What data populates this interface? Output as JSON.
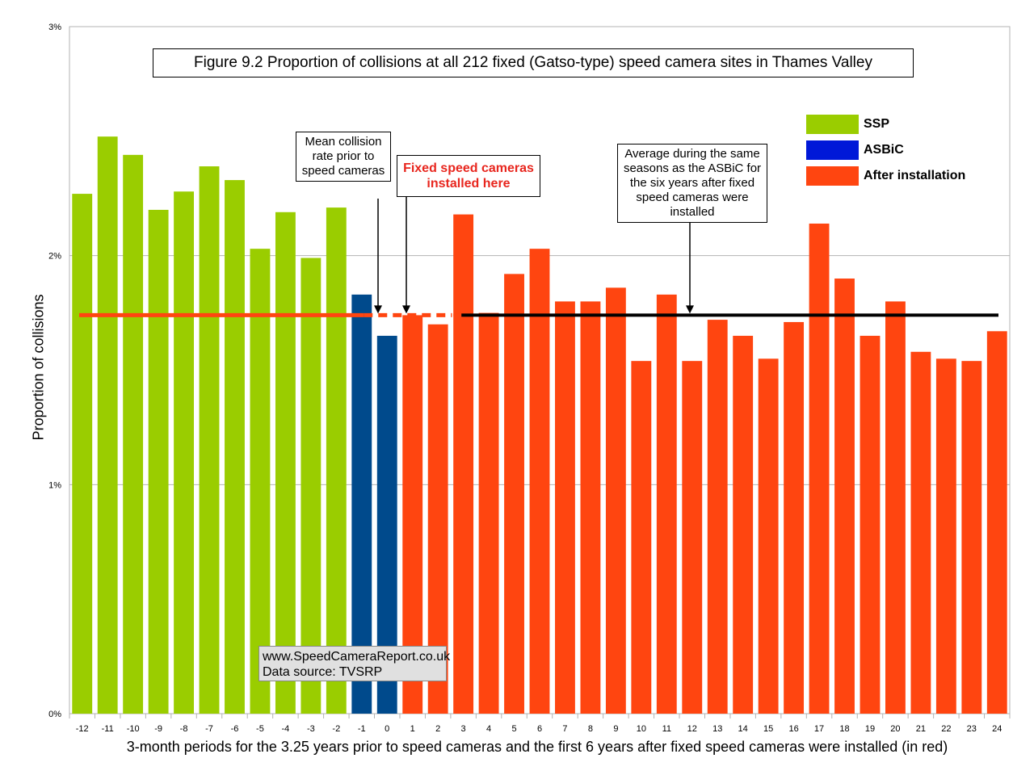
{
  "chart_data": {
    "type": "bar",
    "title": "Figure 9.2 Proportion of collisions at all 212 fixed (Gatso-type) speed camera sites in Thames Valley",
    "xlabel": "3-month periods for the 3.25 years prior to speed cameras and the first 6 years after fixed speed cameras were installed (in red)",
    "ylabel": "Proportion of collisions",
    "ylim": [
      0,
      3
    ],
    "yticks": [
      "0%",
      "1%",
      "2%",
      "3%"
    ],
    "grid": true,
    "categories": [
      "-12",
      "-11",
      "-10",
      "-9",
      "-8",
      "-7",
      "-6",
      "-5",
      "-4",
      "-3",
      "-2",
      "-1",
      "0",
      "1",
      "2",
      "3",
      "4",
      "5",
      "6",
      "7",
      "8",
      "9",
      "10",
      "11",
      "12",
      "13",
      "14",
      "15",
      "16",
      "17",
      "18",
      "19",
      "20",
      "21",
      "22",
      "23",
      "24"
    ],
    "values": [
      2.27,
      2.52,
      2.44,
      2.2,
      2.28,
      2.39,
      2.33,
      2.03,
      2.19,
      1.99,
      2.21,
      1.83,
      1.65,
      1.74,
      1.7,
      2.18,
      1.75,
      1.92,
      2.03,
      1.8,
      1.8,
      1.86,
      1.54,
      1.83,
      1.54,
      1.72,
      1.65,
      1.55,
      1.71,
      2.14,
      1.9,
      1.65,
      1.8,
      1.58,
      1.55,
      1.54,
      1.67
    ],
    "series_groups": [
      {
        "name": "SSP",
        "color": "#9acd00",
        "categories": [
          "-12",
          "-11",
          "-10",
          "-9",
          "-8",
          "-7",
          "-6",
          "-5",
          "-4",
          "-3",
          "-2"
        ]
      },
      {
        "name": "ASBiC",
        "color": "#004a8c",
        "categories": [
          "-1",
          "0"
        ]
      },
      {
        "name": "After installation",
        "color": "#ff4510",
        "categories": [
          "1",
          "2",
          "3",
          "4",
          "5",
          "6",
          "7",
          "8",
          "9",
          "10",
          "11",
          "12",
          "13",
          "14",
          "15",
          "16",
          "17",
          "18",
          "19",
          "20",
          "21",
          "22",
          "23",
          "24"
        ]
      }
    ],
    "legend": {
      "position": "top-right",
      "items": [
        {
          "label": "SSP",
          "color": "#9acd00"
        },
        {
          "label": "ASBiC",
          "color": "#0018d8"
        },
        {
          "label": "After installation",
          "color": "#ff4510"
        }
      ]
    },
    "reference_lines": [
      {
        "label": "Mean collision rate prior to speed cameras",
        "value": 1.74,
        "color": "#ff4510",
        "style": "solid-then-dashed"
      },
      {
        "label": "Average during the same seasons as the ASBiC for the six years after fixed speed cameras were installed",
        "value": 1.74,
        "color": "#000000",
        "style": "solid"
      }
    ],
    "annotations": {
      "mean": "Mean collision rate prior to speed cameras",
      "fixed": "Fixed speed cameras installed here",
      "average": "Average during the same seasons as the ASBiC for the six years after fixed speed cameras were installed"
    },
    "source": {
      "line1": "www.SpeedCameraReport.co.uk",
      "line2": "Data source: TVSRP"
    }
  }
}
